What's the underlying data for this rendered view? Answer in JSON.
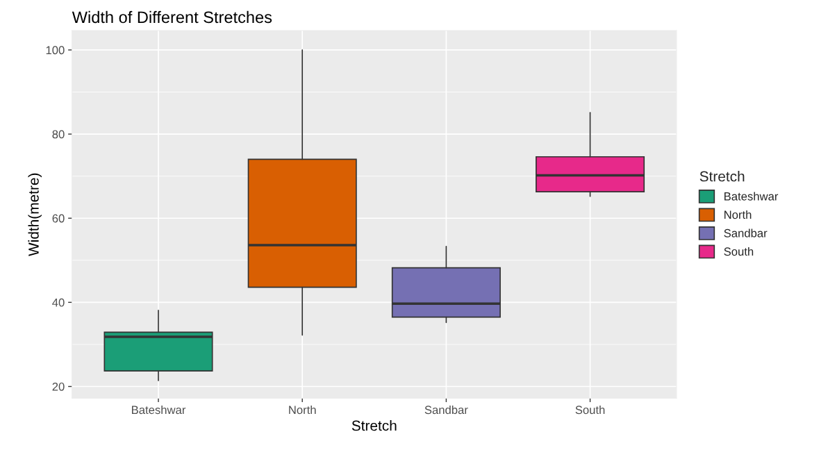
{
  "chart_data": {
    "type": "box",
    "title": "Width of Different Stretches",
    "xlabel": "Stretch",
    "ylabel": "Width(metre)",
    "legend_title": "Stretch",
    "categories": [
      "Bateshwar",
      "North",
      "Sandbar",
      "South"
    ],
    "series": [
      {
        "name": "Bateshwar",
        "color": "#1b9e77",
        "boxes": [
          {
            "low": 21.4,
            "q1": 23.7,
            "median": 31.8,
            "q3": 32.9,
            "high": 38.1
          },
          null,
          null,
          null
        ]
      },
      {
        "name": "North",
        "color": "#d95f02",
        "boxes": [
          null,
          {
            "low": 32.2,
            "q1": 43.6,
            "median": 53.6,
            "q3": 74.0,
            "high": 100
          },
          null,
          null
        ]
      },
      {
        "name": "Sandbar",
        "color": "#7570b3",
        "boxes": [
          null,
          null,
          {
            "low": 35.2,
            "q1": 36.5,
            "median": 39.7,
            "q3": 48.2,
            "high": 53.3
          },
          null
        ]
      },
      {
        "name": "South",
        "color": "#e7298a",
        "boxes": [
          null,
          null,
          null,
          {
            "low": 65.2,
            "q1": 66.3,
            "median": 70.2,
            "q3": 74.6,
            "high": 85.1
          }
        ]
      }
    ],
    "ylim": [
      17.2,
      104.6
    ],
    "yticks": [
      20,
      40,
      60,
      80,
      100
    ],
    "grid": true,
    "legend": "right"
  }
}
